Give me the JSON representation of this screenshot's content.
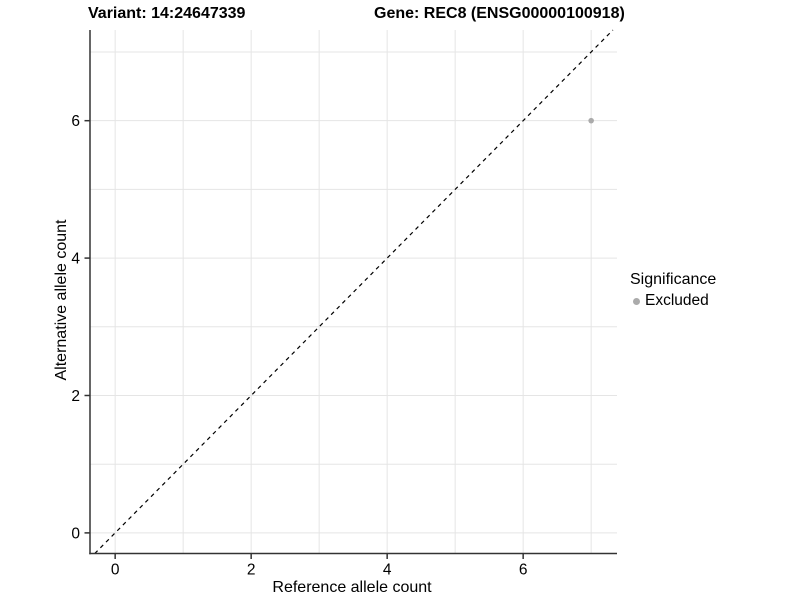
{
  "figure": {
    "title_left": "Variant: 14:24647339",
    "title_right": "Gene: REC8 (ENSG00000100918)"
  },
  "axes": {
    "xlabel": "Reference allele count",
    "ylabel": "Alternative allele count"
  },
  "legend": {
    "title": "Significance",
    "items": [
      {
        "label": "Excluded",
        "color": "#ababab"
      }
    ]
  },
  "chart_data": {
    "type": "scatter",
    "title": "Variant: 14:24647339 | Gene: REC8 (ENSG00000100918)",
    "xlabel": "Reference allele count",
    "ylabel": "Alternative allele count",
    "xlim": [
      -0.37,
      7.38
    ],
    "ylim": [
      -0.3,
      7.32
    ],
    "x_ticks": [
      0,
      2,
      4,
      6
    ],
    "y_ticks": [
      0,
      2,
      4,
      6
    ],
    "grid": "on",
    "grid_interval": 1,
    "legend_position": "right",
    "series": [
      {
        "name": "Excluded",
        "color": "#ababab",
        "point_radius": 2.8,
        "points": [
          {
            "x": 7,
            "y": 6
          }
        ]
      }
    ],
    "reference_line": {
      "equation": "y = x",
      "style": "dashed",
      "color": "#000000"
    }
  },
  "style": {
    "grid_color": "#e5e5e5",
    "axis_color": "#333333",
    "tick_label_color": "#000000",
    "background": "#ffffff"
  }
}
